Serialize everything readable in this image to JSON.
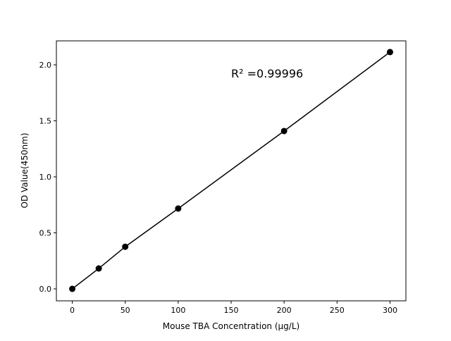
{
  "chart_data": {
    "type": "line",
    "title": "",
    "xlabel": "Mouse TBA Concentration (μg/L)",
    "ylabel": "OD Value(450nm)",
    "xlim": [
      -15,
      315
    ],
    "ylim": [
      -0.107,
      2.214
    ],
    "xticks": [
      0,
      50,
      100,
      150,
      200,
      250,
      300
    ],
    "xtick_labels": [
      "0",
      "50",
      "100",
      "150",
      "200",
      "250",
      "300"
    ],
    "yticks": [
      0.0,
      0.5,
      1.0,
      1.5,
      2.0
    ],
    "ytick_labels": [
      "0.0",
      "0.5",
      "1.0",
      "1.5",
      "2.0"
    ],
    "grid": false,
    "series": [
      {
        "x": [
          0,
          25,
          50,
          100,
          200,
          300
        ],
        "y": [
          0.0,
          0.182,
          0.376,
          0.717,
          1.409,
          2.114
        ],
        "color": "#000000",
        "marker": "circle"
      }
    ],
    "annotations": [
      {
        "text": "R² =0.99996",
        "x": 150,
        "y": 1.9
      }
    ]
  }
}
